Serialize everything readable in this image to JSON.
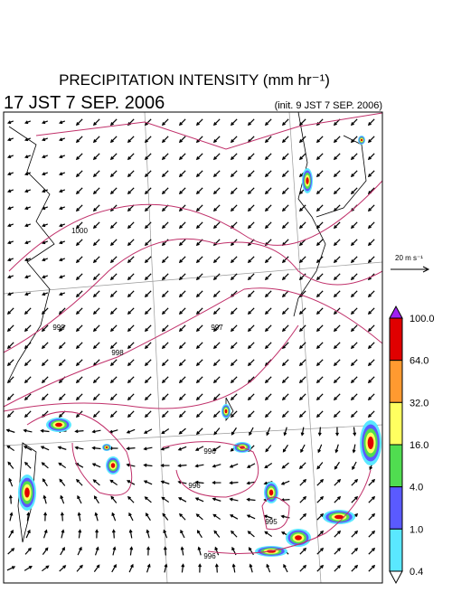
{
  "header": {
    "title": "PRECIPITATION INTENSITY (mm hr⁻¹)",
    "valid_time": "17 JST 7 SEP. 2006",
    "init_time": "(init. 9 JST 7 SEP. 2006)"
  },
  "wind_legend": "20 m s⁻¹",
  "colorbar": {
    "labels": [
      "100.0",
      "64.0",
      "32.0",
      "16.0",
      "4.0",
      "1.0",
      "0.4"
    ],
    "colors": [
      "#a020f0",
      "#e00000",
      "#ff9a30",
      "#ffff60",
      "#50dd50",
      "#5a5aff",
      "#5ae8ff",
      "#ffffff"
    ]
  },
  "contours": {
    "labels": [
      "1000",
      "999",
      "998",
      "997",
      "996",
      "996",
      "995",
      "996"
    ],
    "color": "#c0306a"
  }
}
